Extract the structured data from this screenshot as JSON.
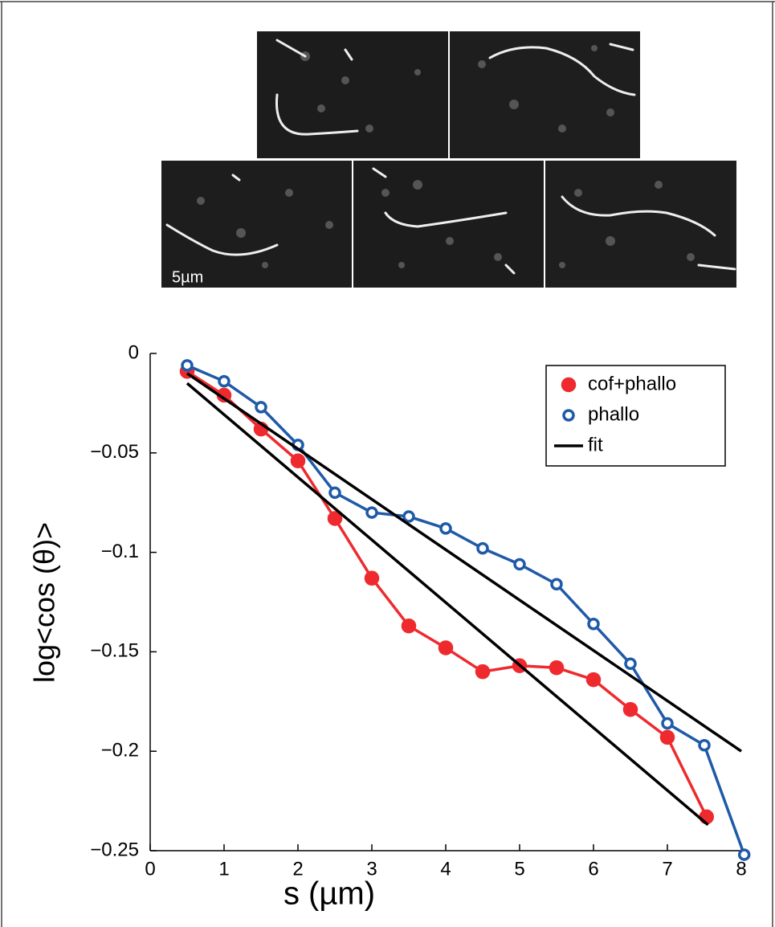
{
  "scale_label": "5µm",
  "chart_data": {
    "type": "line",
    "xlabel": "s (µm)",
    "ylabel": "log<cos (θ)>",
    "xlim": [
      0,
      8
    ],
    "ylim": [
      -0.25,
      0
    ],
    "xticks": [
      0,
      1,
      2,
      3,
      4,
      5,
      6,
      7,
      8
    ],
    "yticks": [
      0,
      {
        "value": -0.05,
        "label": "−0.05"
      },
      {
        "value": -0.1,
        "label": "−0.1"
      },
      {
        "value": -0.15,
        "label": "−0.15"
      },
      {
        "value": -0.2,
        "label": "−0.2"
      },
      {
        "value": -0.25,
        "label": "−0.25"
      }
    ],
    "legend": "upper right",
    "series": [
      {
        "name": "cof+phallo",
        "color": "#ee2a2e",
        "marker": "filled",
        "x": [
          0.5,
          1,
          1.5,
          2,
          2.5,
          3,
          3.5,
          4,
          4.5,
          5,
          5.5,
          6,
          6.5,
          7,
          7.53
        ],
        "values": [
          -0.009,
          -0.021,
          -0.038,
          -0.054,
          -0.083,
          -0.113,
          -0.137,
          -0.148,
          -0.16,
          -0.157,
          -0.158,
          -0.164,
          -0.179,
          -0.193,
          -0.233
        ]
      },
      {
        "name": "phallo",
        "color": "#1f5aa8",
        "marker": "open",
        "x": [
          0.5,
          1,
          1.5,
          2,
          2.5,
          3,
          3.5,
          4,
          4.5,
          5,
          5.5,
          6,
          6.5,
          7,
          7.5,
          8.04
        ],
        "values": [
          -0.006,
          -0.014,
          -0.027,
          -0.046,
          -0.07,
          -0.08,
          -0.082,
          -0.088,
          -0.098,
          -0.106,
          -0.116,
          -0.136,
          -0.156,
          -0.186,
          -0.197,
          -0.252
        ]
      },
      {
        "name": "fit",
        "color": "#000000",
        "marker": "none",
        "x": [
          0.5,
          7.55,
          null,
          0.5,
          8.0
        ],
        "values": [
          -0.015,
          -0.237,
          null,
          -0.01,
          -0.2
        ]
      }
    ]
  }
}
